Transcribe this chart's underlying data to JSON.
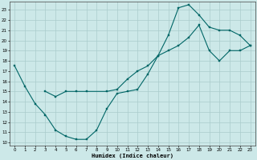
{
  "xlabel": "Humidex (Indice chaleur)",
  "xlim": [
    -0.5,
    23.5
  ],
  "ylim": [
    9.7,
    23.8
  ],
  "yticks": [
    10,
    11,
    12,
    13,
    14,
    15,
    16,
    17,
    18,
    19,
    20,
    21,
    22,
    23
  ],
  "xticks": [
    0,
    1,
    2,
    3,
    4,
    5,
    6,
    7,
    8,
    9,
    10,
    11,
    12,
    13,
    14,
    15,
    16,
    17,
    18,
    19,
    20,
    21,
    22,
    23
  ],
  "bg_color": "#cce8e8",
  "grid_color": "#aacccc",
  "line_color": "#006666",
  "line1_x": [
    0,
    1,
    2,
    3,
    4,
    5,
    6,
    7,
    8,
    9,
    10,
    11,
    12,
    13,
    14,
    15,
    16,
    17,
    18,
    19,
    20,
    21,
    22,
    23
  ],
  "line1_y": [
    17.5,
    15.5,
    13.8,
    12.7,
    11.2,
    10.6,
    10.3,
    10.3,
    11.2,
    13.3,
    14.8,
    15.0,
    15.2,
    16.7,
    18.5,
    20.5,
    23.2,
    23.5,
    22.5,
    21.3,
    21.0,
    21.0,
    20.5,
    19.5
  ],
  "line2_x": [
    3,
    4,
    5,
    6,
    7,
    9,
    10,
    11,
    12,
    13,
    14,
    15,
    16,
    17,
    18,
    19,
    20,
    21,
    22,
    23
  ],
  "line2_y": [
    15.0,
    14.5,
    15.0,
    15.0,
    15.0,
    15.0,
    15.2,
    16.2,
    17.0,
    17.5,
    18.5,
    19.0,
    19.5,
    20.3,
    21.5,
    19.0,
    18.0,
    19.0,
    19.0,
    19.5
  ]
}
